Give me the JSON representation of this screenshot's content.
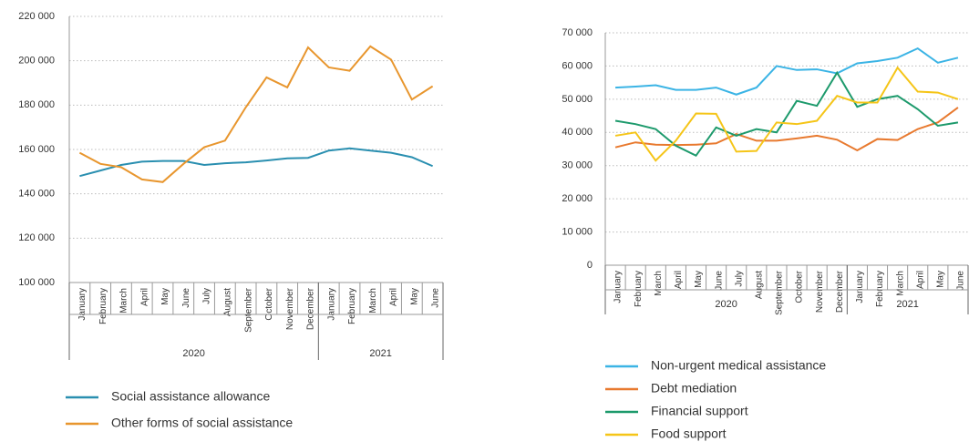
{
  "chart_data": [
    {
      "type": "line",
      "categories": [
        "January",
        "February",
        "March",
        "April",
        "May",
        "June",
        "July",
        "August",
        "September",
        "October",
        "November",
        "December",
        "January",
        "February",
        "March",
        "April",
        "May",
        "June"
      ],
      "groups": [
        {
          "label": "2020",
          "count": 12
        },
        {
          "label": "2021",
          "count": 6
        }
      ],
      "ylim": [
        100000,
        220000
      ],
      "yticks": [
        {
          "value": 100000,
          "label": "100 000"
        },
        {
          "value": 120000,
          "label": "120 000"
        },
        {
          "value": 140000,
          "label": "140 000"
        },
        {
          "value": 160000,
          "label": "160 000"
        },
        {
          "value": 180000,
          "label": "180 000"
        },
        {
          "value": 200000,
          "label": "200 000"
        },
        {
          "value": 220000,
          "label": "220 000"
        }
      ],
      "grid": true,
      "legend": "bottom",
      "series": [
        {
          "name": "Social assistance allowance",
          "color": "#2a8fb0",
          "values": [
            148000,
            150500,
            153000,
            154500,
            154800,
            154800,
            153000,
            153800,
            154200,
            155000,
            156000,
            156200,
            159500,
            160500,
            159500,
            158500,
            156500,
            152500
          ]
        },
        {
          "name": "Other forms of social assistance",
          "color": "#e8962e",
          "values": [
            158500,
            153500,
            152000,
            146500,
            145300,
            153500,
            161000,
            164000,
            179000,
            192500,
            188000,
            206000,
            197000,
            195500,
            206500,
            200500,
            182500,
            188500
          ]
        }
      ]
    },
    {
      "type": "line",
      "categories": [
        "January",
        "February",
        "March",
        "April",
        "May",
        "June",
        "July",
        "August",
        "September",
        "October",
        "November",
        "December",
        "January",
        "February",
        "March",
        "April",
        "May",
        "June"
      ],
      "groups": [
        {
          "label": "2020",
          "count": 12
        },
        {
          "label": "2021",
          "count": 6
        }
      ],
      "ylim": [
        0,
        70000
      ],
      "yticks": [
        0,
        {
          "value": 10000,
          "label": "10 000"
        },
        {
          "value": 20000,
          "label": "20 000"
        },
        {
          "value": 30000,
          "label": "30 000"
        },
        {
          "value": 40000,
          "label": "40 000"
        },
        {
          "value": 50000,
          "label": "50 000"
        },
        {
          "value": 60000,
          "label": "60 000"
        },
        {
          "value": 70000,
          "label": "70 000"
        }
      ],
      "grid": true,
      "legend": "bottom",
      "series": [
        {
          "name": "Non-urgent medical assistance",
          "color": "#3bb4e5",
          "values": [
            53500,
            53800,
            54200,
            52800,
            52800,
            53500,
            51400,
            53500,
            60000,
            58800,
            59000,
            57800,
            60800,
            61500,
            62500,
            65300,
            61000,
            62500
          ]
        },
        {
          "name": "Debt mediation",
          "color": "#e8792e",
          "values": [
            35500,
            37000,
            36300,
            36200,
            36300,
            36700,
            39500,
            37500,
            37500,
            38200,
            39000,
            37800,
            34600,
            38000,
            37700,
            41000,
            43000,
            47500
          ]
        },
        {
          "name": "Financial support",
          "color": "#1d9a6c",
          "values": [
            43500,
            42500,
            41000,
            36000,
            33000,
            41500,
            39000,
            41000,
            40000,
            49500,
            48000,
            58000,
            47700,
            50000,
            51000,
            47000,
            42000,
            43000
          ]
        },
        {
          "name": "Food support",
          "color": "#f5c518",
          "values": [
            39000,
            40000,
            31500,
            37500,
            45700,
            45600,
            34200,
            34400,
            43000,
            42500,
            43500,
            51000,
            49000,
            49000,
            59500,
            52300,
            52000,
            50000
          ]
        }
      ]
    }
  ]
}
